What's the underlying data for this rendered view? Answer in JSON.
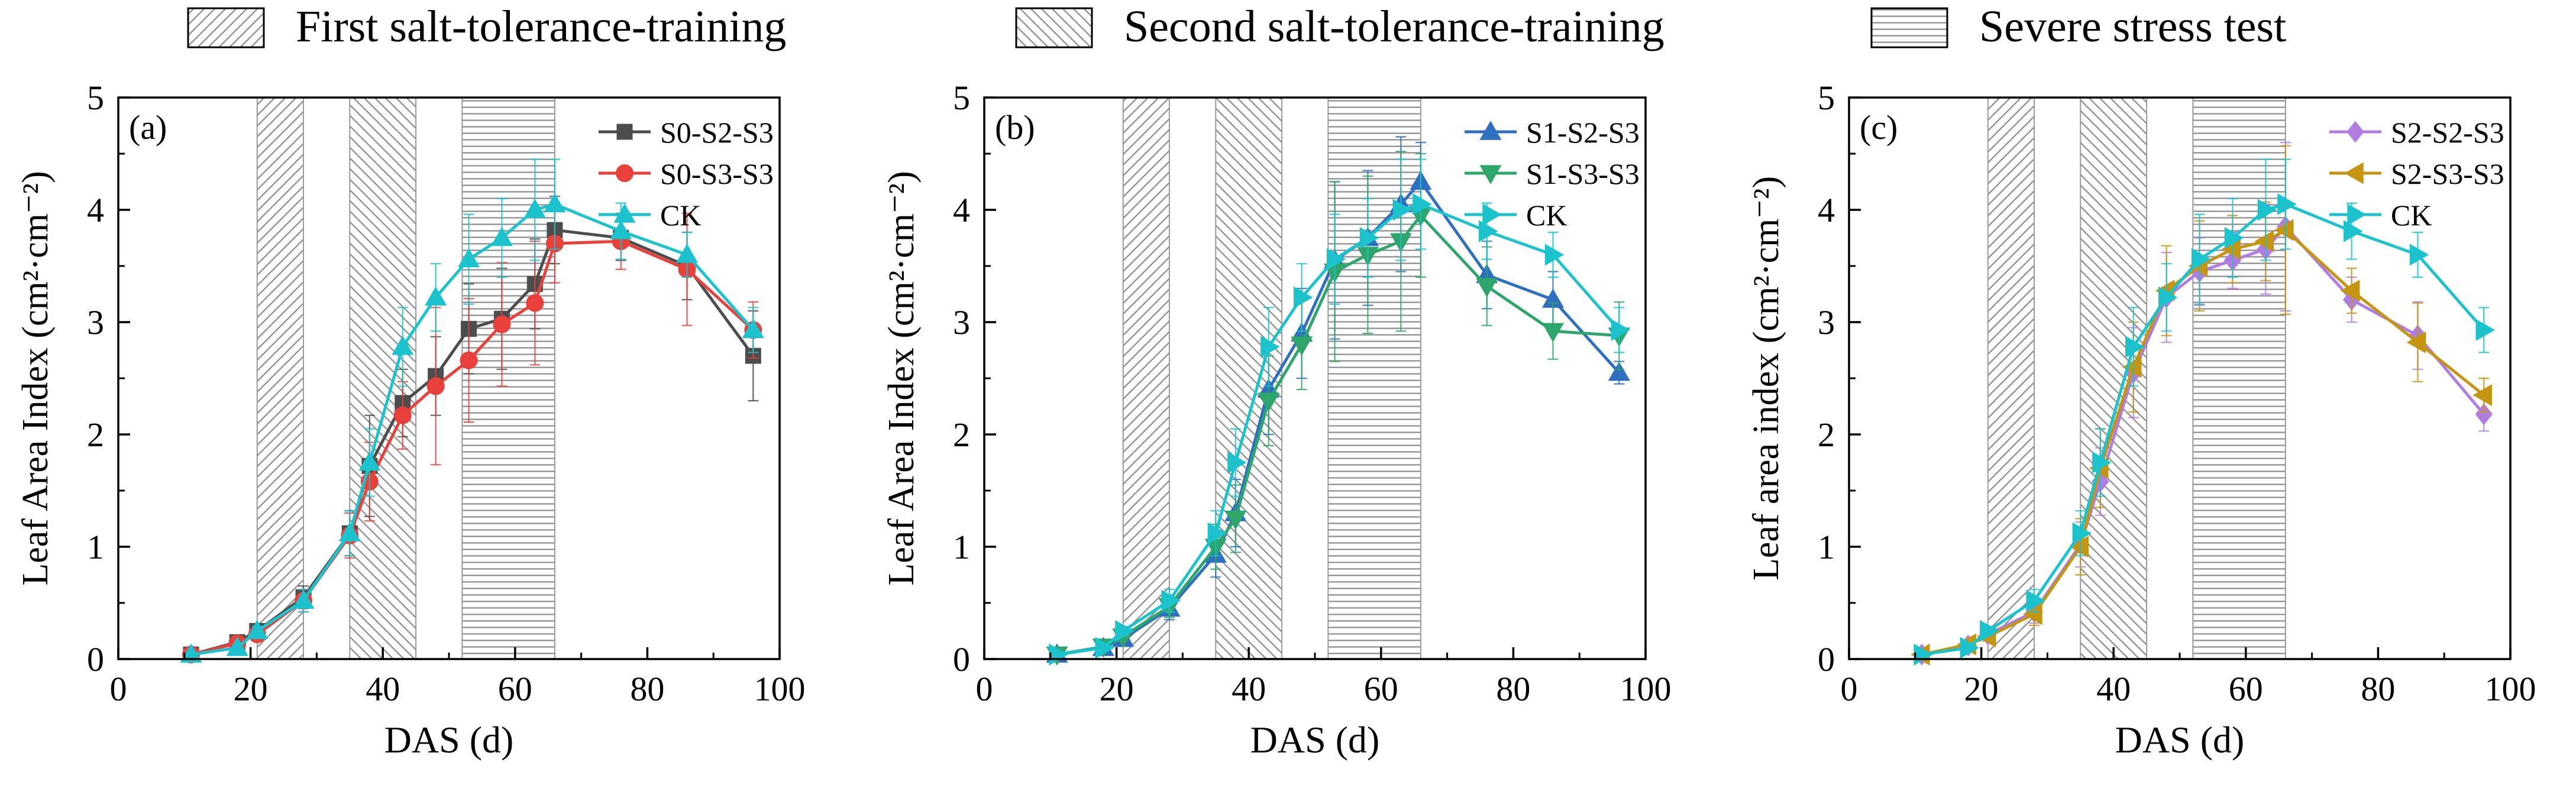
{
  "legend_top": [
    {
      "label": "First salt-tolerance-training",
      "pattern": "diag-fwd"
    },
    {
      "label": "Second salt-tolerance-training",
      "pattern": "diag-back"
    },
    {
      "label": "Severe stress test",
      "pattern": "horiz"
    }
  ],
  "chart_data": [
    {
      "type": "line",
      "panel_label": "(a)",
      "xlabel": "DAS (d)",
      "ylabel": "Leaf Area Index (cm²·cm⁻²)",
      "xlim": [
        0,
        100
      ],
      "ylim": [
        0,
        5
      ],
      "xticks": [
        0,
        20,
        40,
        60,
        80,
        100
      ],
      "yticks": [
        0,
        1,
        2,
        3,
        4,
        5
      ],
      "shaded_periods": [
        {
          "pattern": "diag-fwd",
          "x": [
            21,
            28
          ]
        },
        {
          "pattern": "diag-back",
          "x": [
            35,
            45
          ]
        },
        {
          "pattern": "horiz",
          "x": [
            52,
            66
          ]
        }
      ],
      "legend_position": "top-right",
      "series": [
        {
          "name": "S0-S2-S3",
          "color": "#4d4d4d",
          "marker": "square",
          "x": [
            11,
            18,
            21,
            28,
            35,
            38,
            43,
            48,
            53,
            58,
            63,
            66,
            76,
            86,
            96
          ],
          "y": [
            0.04,
            0.15,
            0.25,
            0.55,
            1.12,
            1.72,
            2.28,
            2.52,
            2.94,
            3.03,
            3.34,
            3.82,
            3.75,
            3.5,
            2.7
          ],
          "err": [
            0.02,
            0.03,
            0.04,
            0.1,
            0.2,
            0.45,
            0.3,
            0.35,
            0.4,
            0.45,
            0.4,
            0.3,
            0.2,
            0.3,
            0.4
          ]
        },
        {
          "name": "S0-S3-S3",
          "color": "#e8413c",
          "marker": "circle",
          "x": [
            11,
            18,
            21,
            28,
            35,
            38,
            43,
            48,
            53,
            58,
            63,
            66,
            76,
            86,
            96
          ],
          "y": [
            0.04,
            0.14,
            0.22,
            0.52,
            1.1,
            1.58,
            2.17,
            2.43,
            2.66,
            2.98,
            3.17,
            3.7,
            3.72,
            3.47,
            2.93
          ],
          "err": [
            0.02,
            0.03,
            0.04,
            0.1,
            0.2,
            0.35,
            0.3,
            0.7,
            0.55,
            0.55,
            0.55,
            0.35,
            0.25,
            0.5,
            0.25
          ]
        },
        {
          "name": "CK",
          "color": "#1cc2cc",
          "marker": "triangle-up",
          "x": [
            11,
            18,
            21,
            28,
            35,
            38,
            43,
            48,
            53,
            58,
            63,
            66,
            76,
            86,
            96
          ],
          "y": [
            0.04,
            0.1,
            0.25,
            0.52,
            1.12,
            1.75,
            2.78,
            3.22,
            3.56,
            3.75,
            4.0,
            4.05,
            3.81,
            3.6,
            2.93
          ],
          "err": [
            0.02,
            0.03,
            0.04,
            0.1,
            0.2,
            0.3,
            0.35,
            0.3,
            0.4,
            0.35,
            0.45,
            0.4,
            0.25,
            0.2,
            0.2
          ]
        }
      ]
    },
    {
      "type": "line",
      "panel_label": "(b)",
      "xlabel": "DAS (d)",
      "ylabel": "Leaf Area Index (cm²·cm⁻²)",
      "xlim": [
        0,
        100
      ],
      "ylim": [
        0,
        5
      ],
      "xticks": [
        0,
        20,
        40,
        60,
        80,
        100
      ],
      "yticks": [
        0,
        1,
        2,
        3,
        4,
        5
      ],
      "shaded_periods": [
        {
          "pattern": "diag-fwd",
          "x": [
            21,
            28
          ]
        },
        {
          "pattern": "diag-back",
          "x": [
            35,
            45
          ]
        },
        {
          "pattern": "horiz",
          "x": [
            52,
            66
          ]
        }
      ],
      "legend_position": "top-right",
      "series": [
        {
          "name": "S1-S2-S3",
          "color": "#2f6fbf",
          "marker": "triangle-up",
          "x": [
            11,
            18,
            21,
            28,
            35,
            38,
            43,
            48,
            53,
            58,
            63,
            66,
            76,
            86,
            96
          ],
          "y": [
            0.04,
            0.1,
            0.18,
            0.45,
            0.93,
            1.3,
            2.4,
            2.9,
            3.55,
            3.75,
            4.05,
            4.25,
            3.42,
            3.2,
            2.55
          ],
          "err": [
            0.02,
            0.03,
            0.04,
            0.1,
            0.2,
            0.3,
            0.4,
            0.4,
            0.7,
            0.6,
            0.6,
            0.35,
            0.3,
            0.25,
            0.1
          ]
        },
        {
          "name": "S1-S3-S3",
          "color": "#2ea56b",
          "marker": "triangle-down",
          "x": [
            11,
            18,
            21,
            28,
            35,
            38,
            43,
            48,
            53,
            58,
            63,
            66,
            76,
            86,
            96
          ],
          "y": [
            0.04,
            0.11,
            0.2,
            0.47,
            1.0,
            1.25,
            2.3,
            2.8,
            3.45,
            3.6,
            3.72,
            3.95,
            3.32,
            2.92,
            2.88
          ],
          "err": [
            0.02,
            0.03,
            0.04,
            0.1,
            0.2,
            0.3,
            0.4,
            0.4,
            0.8,
            0.7,
            0.8,
            0.55,
            0.35,
            0.25,
            0.3
          ]
        },
        {
          "name": "CK",
          "color": "#1cc2cc",
          "marker": "triangle-right",
          "x": [
            11,
            18,
            21,
            28,
            35,
            38,
            43,
            48,
            53,
            58,
            63,
            66,
            76,
            86,
            96
          ],
          "y": [
            0.04,
            0.1,
            0.25,
            0.52,
            1.12,
            1.75,
            2.78,
            3.22,
            3.56,
            3.75,
            4.0,
            4.05,
            3.81,
            3.6,
            2.93
          ],
          "err": [
            0.02,
            0.03,
            0.04,
            0.1,
            0.2,
            0.3,
            0.35,
            0.3,
            0.4,
            0.35,
            0.45,
            0.4,
            0.25,
            0.2,
            0.2
          ]
        }
      ]
    },
    {
      "type": "line",
      "panel_label": "(c)",
      "xlabel": "DAS (d)",
      "ylabel": "Leaf area index (cm²·cm⁻²)",
      "xlim": [
        0,
        100
      ],
      "ylim": [
        0,
        5
      ],
      "xticks": [
        0,
        20,
        40,
        60,
        80,
        100
      ],
      "yticks": [
        0,
        1,
        2,
        3,
        4,
        5
      ],
      "shaded_periods": [
        {
          "pattern": "diag-fwd",
          "x": [
            21,
            28
          ]
        },
        {
          "pattern": "diag-back",
          "x": [
            35,
            45
          ]
        },
        {
          "pattern": "horiz",
          "x": [
            52,
            66
          ]
        }
      ],
      "legend_position": "top-right",
      "series": [
        {
          "name": "S2-S2-S3",
          "color": "#b07ee0",
          "marker": "diamond",
          "x": [
            11,
            18,
            21,
            28,
            35,
            38,
            43,
            48,
            53,
            58,
            63,
            66,
            76,
            86,
            96
          ],
          "y": [
            0.04,
            0.12,
            0.22,
            0.42,
            1.02,
            1.58,
            2.55,
            3.22,
            3.45,
            3.55,
            3.65,
            3.85,
            3.2,
            2.88,
            2.18
          ],
          "err": [
            0.02,
            0.03,
            0.04,
            0.1,
            0.2,
            0.3,
            0.4,
            0.4,
            0.3,
            0.25,
            0.4,
            0.75,
            0.2,
            0.3,
            0.15
          ]
        },
        {
          "name": "S2-S3-S3",
          "color": "#c39513",
          "marker": "triangle-left",
          "x": [
            11,
            18,
            21,
            28,
            35,
            38,
            43,
            48,
            53,
            58,
            63,
            66,
            76,
            86,
            96
          ],
          "y": [
            0.04,
            0.13,
            0.2,
            0.4,
            1.0,
            1.7,
            2.6,
            3.28,
            3.5,
            3.65,
            3.72,
            3.82,
            3.28,
            2.82,
            2.35
          ],
          "err": [
            0.02,
            0.03,
            0.04,
            0.1,
            0.25,
            0.35,
            0.4,
            0.4,
            0.4,
            0.3,
            0.35,
            0.75,
            0.2,
            0.35,
            0.15
          ]
        },
        {
          "name": "CK",
          "color": "#1cc2cc",
          "marker": "triangle-right",
          "x": [
            11,
            18,
            21,
            28,
            35,
            38,
            43,
            48,
            53,
            58,
            63,
            66,
            76,
            86,
            96
          ],
          "y": [
            0.04,
            0.1,
            0.25,
            0.52,
            1.12,
            1.75,
            2.78,
            3.22,
            3.56,
            3.75,
            4.0,
            4.05,
            3.81,
            3.6,
            2.93
          ],
          "err": [
            0.02,
            0.03,
            0.04,
            0.1,
            0.2,
            0.3,
            0.35,
            0.3,
            0.4,
            0.35,
            0.45,
            0.4,
            0.25,
            0.2,
            0.2
          ]
        }
      ]
    }
  ]
}
